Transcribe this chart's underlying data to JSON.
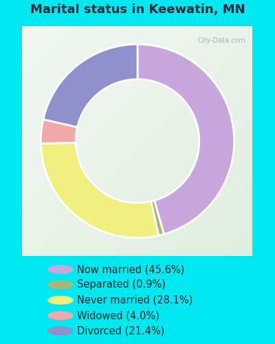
{
  "title": "Marital status in Keewatin, MN",
  "slices": [
    45.6,
    0.9,
    28.1,
    4.0,
    21.4
  ],
  "labels": [
    "Now married (45.6%)",
    "Separated (0.9%)",
    "Never married (28.1%)",
    "Widowed (4.0%)",
    "Divorced (21.4%)"
  ],
  "colors": [
    "#c8a8dc",
    "#a8b878",
    "#f0f080",
    "#f0a8a8",
    "#9090cc"
  ],
  "bg_cyan": "#00e8f0",
  "chart_bg_color": "#d8ede0",
  "title_fontsize": 13,
  "legend_fontsize": 10.5,
  "title_color": "#2a2a3a",
  "legend_text_color": "#2a2a2a",
  "watermark": "City-Data.com",
  "donut_width": 0.38
}
